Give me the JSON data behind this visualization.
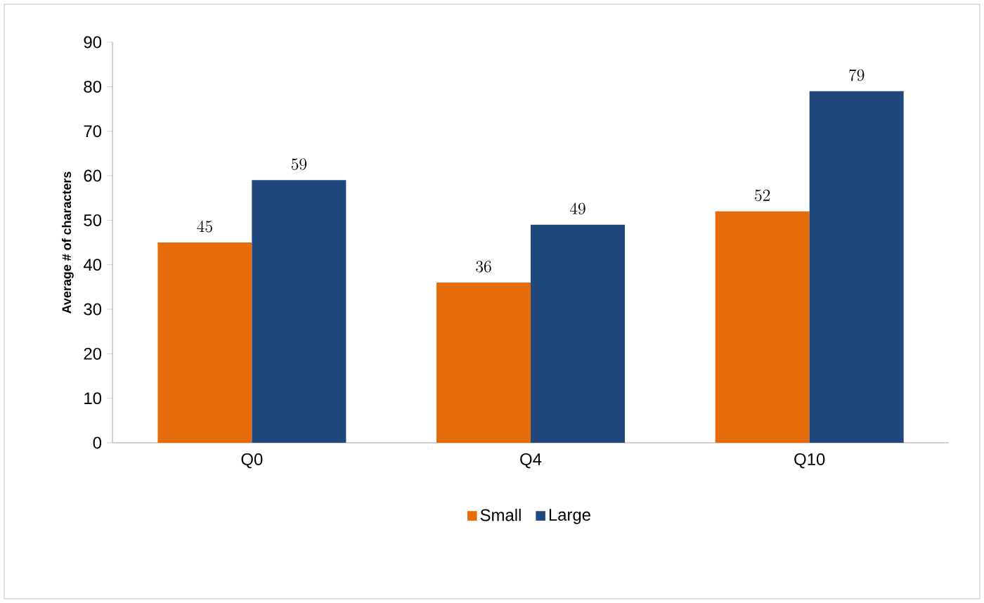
{
  "chart_data": {
    "type": "bar",
    "ylabel": "Average # of characters",
    "categories": [
      "Q0",
      "Q4",
      "Q10"
    ],
    "series": [
      {
        "name": "Small",
        "color": "#e46c0a",
        "values": [
          45,
          36,
          52
        ]
      },
      {
        "name": "Large",
        "color": "#1f497d",
        "values": [
          59,
          49,
          79
        ]
      }
    ],
    "ylim": [
      0,
      90
    ],
    "yticks": [
      0,
      10,
      20,
      30,
      40,
      50,
      60,
      70,
      80,
      90
    ],
    "data_labels": true,
    "legend": "bottom"
  }
}
